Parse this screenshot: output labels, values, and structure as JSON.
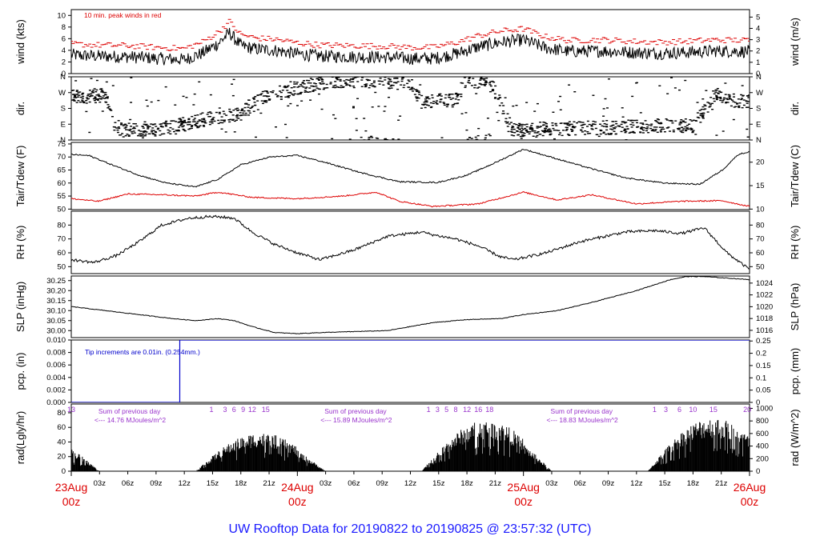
{
  "title": "UW Rooftop Data for 20190822  to  20190825 @ 23:57:32  (UTC)",
  "colors": {
    "axis": "#000000",
    "data": "#000000",
    "peak": "#dd0000",
    "dew": "#dd0000",
    "note": "#0000cc",
    "sun": "#9933cc",
    "date": "#dd0000",
    "title": "#1a1aff"
  },
  "time_axis": {
    "hour_ticks": [
      "03z",
      "06z",
      "09z",
      "12z",
      "15z",
      "18z",
      "21z",
      "03z",
      "06z",
      "09z",
      "12z",
      "15z",
      "18z",
      "21z",
      "03z",
      "06z",
      "09z",
      "12z",
      "15z",
      "18z",
      "21z"
    ],
    "date_labels": [
      {
        "date": "23Aug",
        "hour": "00z"
      },
      {
        "date": "24Aug",
        "hour": "00z"
      },
      {
        "date": "25Aug",
        "hour": "00z"
      },
      {
        "date": "26Aug",
        "hour": "00z"
      }
    ]
  },
  "chart_data": [
    {
      "type": "line",
      "id": "wind",
      "ylabel": "wind (kts)",
      "ylabel_right": "wind (m/s)",
      "ylim": [
        0,
        11
      ],
      "yticks": [
        "0",
        "2",
        "4",
        "6",
        "8",
        "10"
      ],
      "ylim_right": [
        0,
        5.66
      ],
      "yticks_right": [
        "0",
        "1",
        "2",
        "3",
        "4",
        "5"
      ],
      "annotation": "10 min. peak winds in red",
      "x_days": [
        0,
        0.12,
        0.25,
        0.38,
        0.5,
        0.58,
        0.65,
        0.7,
        0.75,
        0.82,
        0.9,
        1.0,
        1.1,
        1.25,
        1.4,
        1.5,
        1.6,
        1.7,
        1.8,
        1.9,
        2.0,
        2.1,
        2.2,
        2.35,
        2.5,
        2.6,
        2.7,
        2.85,
        3.0
      ],
      "y_mean": [
        3.2,
        3.0,
        2.9,
        2.6,
        2.4,
        3.5,
        5.2,
        7.0,
        4.8,
        4.2,
        4.0,
        3.4,
        3.0,
        2.9,
        2.8,
        2.6,
        2.6,
        3.4,
        4.6,
        5.4,
        5.8,
        4.4,
        3.8,
        3.9,
        3.6,
        3.5,
        3.6,
        3.9,
        3.8
      ],
      "peak_offset_kts": 1.4
    },
    {
      "type": "scatter",
      "id": "dir",
      "ylabel": "dir.",
      "ylabel_right": "dir.",
      "ylim": [
        0,
        360
      ],
      "yticks": [
        "N",
        "E",
        "S",
        "W",
        "N"
      ],
      "yticks_right": [
        "N",
        "E",
        "S",
        "W",
        "N"
      ],
      "x_days": [
        0,
        0.15,
        0.2,
        0.35,
        0.5,
        0.6,
        0.75,
        0.85,
        1.0,
        1.15,
        1.3,
        1.5,
        1.55,
        1.7,
        1.75,
        1.85,
        1.95,
        2.0,
        2.15,
        2.4,
        2.6,
        2.75,
        2.85,
        2.9,
        3.0
      ],
      "y_center_deg": [
        245,
        255,
        60,
        50,
        90,
        120,
        150,
        240,
        300,
        330,
        340,
        320,
        220,
        225,
        350,
        355,
        60,
        60,
        65,
        70,
        80,
        80,
        260,
        230,
        220
      ],
      "spread_deg": 40
    },
    {
      "type": "line",
      "id": "temp",
      "ylabel": "Tair/Tdew (F)",
      "ylabel_right": "Tair/Tdew (C)",
      "ylim": [
        49.8,
        75.6
      ],
      "yticks": [
        "50",
        "55",
        "60",
        "65",
        "70",
        "75"
      ],
      "ylim_right": [
        9.89,
        24.22
      ],
      "yticks_right": [
        "10",
        "15",
        "20"
      ],
      "series": [
        {
          "x_days": [
            0,
            0.08,
            0.18,
            0.3,
            0.42,
            0.55,
            0.65,
            0.75,
            0.88,
            1.0,
            1.12,
            1.28,
            1.45,
            1.62,
            1.75,
            1.88,
            2.0,
            2.12,
            2.28,
            2.45,
            2.62,
            2.78,
            2.88,
            2.95,
            3.0
          ],
          "values": [
            71,
            70.5,
            67,
            63,
            60,
            58.5,
            61.5,
            67,
            70,
            70.6,
            68,
            64,
            60.5,
            60.2,
            63,
            68,
            73,
            70,
            66,
            62,
            60,
            59.5,
            65,
            71,
            72
          ]
        },
        {
          "x_days": [
            0,
            0.12,
            0.25,
            0.4,
            0.55,
            0.65,
            0.8,
            1.0,
            1.2,
            1.35,
            1.45,
            1.6,
            1.8,
            2.0,
            2.15,
            2.3,
            2.5,
            2.7,
            2.88,
            3.0
          ],
          "values": [
            54,
            53,
            55.8,
            55.5,
            55,
            56.5,
            54.5,
            54,
            55,
            56.5,
            53,
            51,
            52,
            56.5,
            53.5,
            55.5,
            52,
            53,
            53.2,
            51
          ]
        }
      ]
    },
    {
      "type": "line",
      "id": "rh",
      "ylabel": "RH (%)",
      "ylabel_right": "RH (%)",
      "ylim": [
        45,
        90
      ],
      "yticks": [
        "50",
        "60",
        "70",
        "80"
      ],
      "yticks_right": [
        "50",
        "60",
        "70",
        "80"
      ],
      "x_days": [
        0,
        0.1,
        0.2,
        0.3,
        0.4,
        0.52,
        0.6,
        0.65,
        0.72,
        0.8,
        0.9,
        1.0,
        1.1,
        1.25,
        1.4,
        1.55,
        1.6,
        1.7,
        1.8,
        1.9,
        1.96,
        2.1,
        2.25,
        2.45,
        2.58,
        2.7,
        2.8,
        2.9,
        3.0
      ],
      "values": [
        55,
        53,
        58,
        68,
        80,
        85,
        86,
        86,
        85,
        75,
        66,
        60,
        55,
        62,
        72,
        75,
        73,
        70,
        65,
        57,
        55,
        60,
        68,
        75,
        76,
        74,
        78,
        60,
        48
      ]
    },
    {
      "type": "line",
      "id": "slp",
      "ylabel": "SLP (inHg)",
      "ylabel_right": "SLP (hPa)",
      "ylim": [
        29.965,
        30.273
      ],
      "yticks": [
        "30.00",
        "30.05",
        "30.10",
        "30.15",
        "30.20",
        "30.25"
      ],
      "ylim_right": [
        1014.77,
        1025.2
      ],
      "yticks_right": [
        "1016",
        "1018",
        "1020",
        "1022",
        "1024"
      ],
      "x_days": [
        0,
        0.15,
        0.3,
        0.45,
        0.55,
        0.65,
        0.72,
        0.8,
        0.9,
        1.0,
        1.1,
        1.25,
        1.4,
        1.5,
        1.6,
        1.75,
        1.9,
        2.0,
        2.15,
        2.3,
        2.5,
        2.65,
        2.72,
        2.8,
        3.0
      ],
      "values": [
        30.12,
        30.1,
        30.08,
        30.06,
        30.05,
        30.06,
        30.05,
        30.02,
        29.99,
        29.985,
        29.99,
        29.995,
        30.0,
        30.02,
        30.04,
        30.055,
        30.06,
        30.08,
        30.1,
        30.14,
        30.2,
        30.255,
        30.27,
        30.27,
        30.255
      ]
    },
    {
      "type": "line",
      "id": "pcp",
      "ylabel": "pcp. (in)",
      "ylabel_right": "pcp. (mm)",
      "ylim": [
        0,
        0.01
      ],
      "yticks": [
        "0.000",
        "0.002",
        "0.004",
        "0.006",
        "0.008",
        "0.010"
      ],
      "ylim_right": [
        0,
        0.254
      ],
      "yticks_right": [
        "0",
        "0.05",
        "0.1",
        "0.15",
        "0.2",
        "0.25"
      ],
      "annotation": "Tip increments are 0.01in. (0.254mm.)",
      "x_days": [
        0,
        0.48,
        0.48,
        3.0
      ],
      "values": [
        0,
        0,
        0.01,
        0.01
      ]
    },
    {
      "type": "area",
      "id": "rad",
      "ylabel": "rad(Lgly/hr)",
      "ylabel_right": "rad (W/m^2)",
      "ylim": [
        0,
        92
      ],
      "yticks": [
        "0",
        "20",
        "40",
        "60",
        "80"
      ],
      "ylim_right": [
        0,
        1069.5
      ],
      "yticks_right": [
        "0",
        "200",
        "400",
        "600",
        "800",
        "1000"
      ],
      "day_peak": [
        50,
        45,
        60,
        63
      ],
      "sun_hour_labels": [
        [
          "13"
        ],
        [
          "1",
          "3",
          "6",
          "9",
          "12",
          "15"
        ],
        [
          "1",
          "3",
          "5",
          "8",
          "12",
          "16",
          "18"
        ],
        [
          "1",
          "3",
          "6",
          "10",
          "15",
          "20"
        ]
      ],
      "daily_totals": [
        {
          "line1": "Sum of previous day",
          "line2": "<--- 14.76 MJoules/m^2"
        },
        {
          "line1": "Sum of previous day",
          "line2": "<--- 15.89 MJoules/m^2"
        },
        {
          "line1": "Sum of previous day",
          "line2": "<--- 18.83 MJoules/m^2"
        }
      ]
    }
  ]
}
